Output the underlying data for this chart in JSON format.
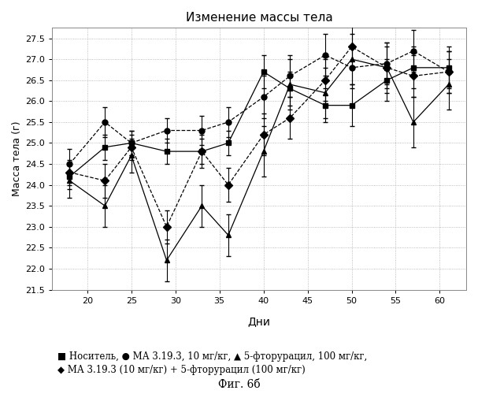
{
  "title": "Изменение массы тела",
  "xlabel": "Дни",
  "ylabel": "Масса тела (г)",
  "figcaption": "Фиг. 6б",
  "days": [
    18,
    22,
    25,
    29,
    33,
    36,
    40,
    43,
    47,
    50,
    54,
    57,
    61
  ],
  "series": {
    "vehicle": {
      "label": "Носитель",
      "marker": "s",
      "linestyle": "-",
      "values": [
        24.2,
        24.9,
        25.0,
        24.8,
        24.8,
        25.0,
        26.7,
        26.3,
        25.9,
        25.9,
        26.5,
        26.8,
        26.8
      ],
      "errors": [
        0.3,
        0.3,
        0.3,
        0.3,
        0.3,
        0.3,
        0.4,
        0.4,
        0.4,
        0.5,
        0.5,
        0.5,
        0.5
      ]
    },
    "ma3193": {
      "label": "МА 3.19.3, 10 мг/кг",
      "marker": "o",
      "linestyle": "--",
      "values": [
        24.5,
        25.5,
        25.0,
        25.3,
        25.3,
        25.5,
        26.1,
        26.6,
        27.1,
        26.8,
        26.9,
        27.2,
        26.7
      ],
      "errors": [
        0.35,
        0.35,
        0.3,
        0.3,
        0.35,
        0.35,
        0.5,
        0.5,
        0.5,
        0.5,
        0.5,
        0.5,
        0.5
      ]
    },
    "fu": {
      "label": "5-фторурацил, 100 мг/кг",
      "marker": "^",
      "linestyle": "-",
      "values": [
        24.1,
        23.5,
        24.7,
        22.2,
        23.5,
        22.8,
        24.8,
        26.4,
        26.2,
        27.0,
        26.8,
        25.5,
        26.4
      ],
      "errors": [
        0.4,
        0.5,
        0.4,
        0.5,
        0.5,
        0.5,
        0.6,
        0.6,
        0.6,
        0.6,
        0.6,
        0.6,
        0.6
      ]
    },
    "combo": {
      "label": "МА 3.19.3 (10 мг/кг) + 5-фторурацил (100 мг/кг)",
      "marker": "D",
      "linestyle": "--",
      "values": [
        24.3,
        24.1,
        24.9,
        23.0,
        24.8,
        24.0,
        25.2,
        25.6,
        26.5,
        27.3,
        26.8,
        26.6,
        26.7
      ],
      "errors": [
        0.3,
        0.4,
        0.3,
        0.4,
        0.4,
        0.4,
        0.5,
        0.5,
        0.5,
        0.5,
        0.5,
        0.5,
        0.5
      ]
    }
  },
  "xlim": [
    16,
    63
  ],
  "ylim": [
    21.5,
    27.75
  ],
  "xticks": [
    20,
    25,
    30,
    35,
    40,
    45,
    50,
    55,
    60
  ],
  "yticks": [
    21.5,
    22.0,
    22.5,
    23.0,
    23.5,
    24.0,
    24.5,
    25.0,
    25.5,
    26.0,
    26.5,
    27.0,
    27.5
  ],
  "background_color": "#ffffff",
  "plot_bg_color": "#ffffff",
  "legend_line1": "■ Носитель, ● МА 3.19.3, 10 мг/кг, ▲ 5-фторурацил, 100 мг/кг,",
  "legend_line2": "◆ МА 3.19.3 (10 мг/кг) + 5-фторурацил (100 мг/кг)"
}
